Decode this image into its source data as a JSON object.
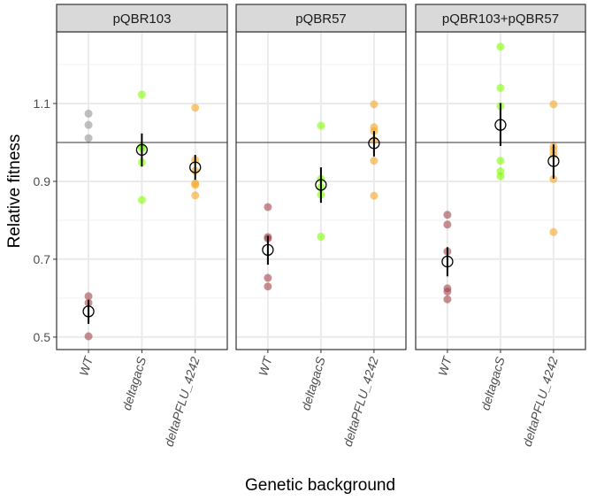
{
  "chart_data": {
    "type": "scatter",
    "ylabel": "Relative fitness",
    "xlabel": "Genetic background",
    "ylim": [
      0.468,
      1.284
    ],
    "yticks": [
      0.5,
      0.7,
      0.9,
      1.1
    ],
    "yticks_labels": [
      "0.5",
      "0.7",
      "0.9",
      "1.1"
    ],
    "minor_gridlines": [
      0.6,
      0.8,
      1.0,
      1.2
    ],
    "reference_line": 1.0,
    "grid": true,
    "categories": [
      "WT",
      "deltagacS",
      "deltaPFLU_4242"
    ],
    "colors": {
      "WT": "#a0464b",
      "WT_reference": "#a9a9a9",
      "deltagacS": "#7fff00",
      "deltaPFLU_4242": "#f5a623"
    },
    "panels": [
      {
        "title": "pQBR103",
        "groups": [
          {
            "category": "WT",
            "points": [
              0.605,
              0.588,
              0.502
            ],
            "reference_points": [
              1.074,
              1.045,
              1.011
            ],
            "mean": 0.566,
            "err_low": 0.534,
            "err_high": 0.595
          },
          {
            "category": "deltagacS",
            "points": [
              1.123,
              0.989,
              0.985,
              0.949,
              0.852
            ],
            "mean": 0.981,
            "err_low": 0.938,
            "err_high": 1.023
          },
          {
            "category": "deltaPFLU_4242",
            "points": [
              1.089,
              0.955,
              0.927,
              0.895,
              0.891,
              0.864
            ],
            "mean": 0.936,
            "err_low": 0.904,
            "err_high": 0.968
          }
        ]
      },
      {
        "title": "pQBR57",
        "groups": [
          {
            "category": "WT",
            "points": [
              0.834,
              0.757,
              0.753,
              0.652,
              0.63
            ],
            "mean": 0.724,
            "err_low": 0.686,
            "err_high": 0.76
          },
          {
            "category": "deltagacS",
            "points": [
              1.043,
              0.906,
              0.885,
              0.866,
              0.758
            ],
            "mean": 0.891,
            "err_low": 0.845,
            "err_high": 0.936
          },
          {
            "category": "deltaPFLU_4242",
            "points": [
              1.098,
              1.039,
              1.029,
              1.006,
              0.953,
              0.863
            ],
            "mean": 0.998,
            "err_low": 0.964,
            "err_high": 1.029
          }
        ]
      },
      {
        "title": "pQBR103+pQBR57",
        "groups": [
          {
            "category": "WT",
            "points": [
              0.814,
              0.789,
              0.72,
              0.625,
              0.617,
              0.597
            ],
            "mean": 0.694,
            "err_low": 0.656,
            "err_high": 0.731
          },
          {
            "category": "deltagacS",
            "points": [
              1.246,
              1.14,
              1.093,
              0.953,
              0.926,
              0.913
            ],
            "mean": 1.045,
            "err_low": 0.991,
            "err_high": 1.101
          },
          {
            "category": "deltaPFLU_4242",
            "points": [
              1.098,
              0.989,
              0.98,
              0.968,
              0.906,
              0.77
            ],
            "mean": 0.952,
            "err_low": 0.907,
            "err_high": 0.995
          }
        ]
      }
    ]
  }
}
